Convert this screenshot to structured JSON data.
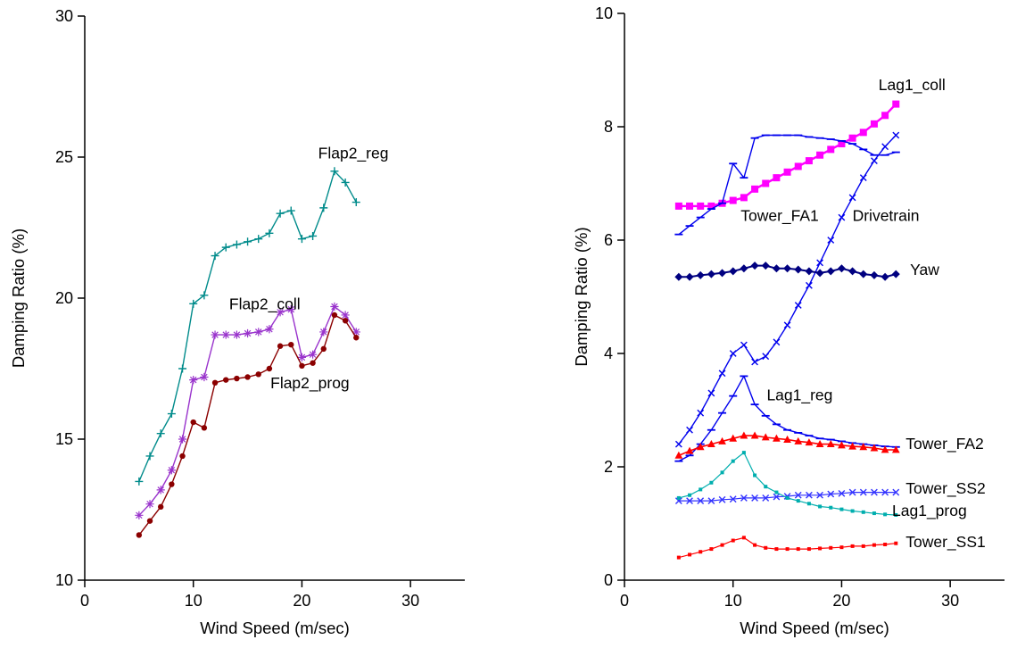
{
  "figure": {
    "background": "#ffffff",
    "description": "Two line charts of damping ratio versus wind speed"
  },
  "chart_data": [
    {
      "id": "flap-modes",
      "type": "line",
      "title": "",
      "xlabel": "Wind Speed (m/sec)",
      "ylabel": "Damping Ratio (%)",
      "xlim": [
        0,
        35
      ],
      "ylim": [
        10,
        30
      ],
      "xticks": [
        0,
        10,
        20,
        30
      ],
      "yticks": [
        10,
        15,
        20,
        25,
        30
      ],
      "grid": false,
      "legend_position": "none",
      "x": [
        5,
        6,
        7,
        8,
        9,
        10,
        11,
        12,
        13,
        14,
        15,
        16,
        17,
        18,
        19,
        20,
        21,
        22,
        23,
        24,
        25
      ],
      "series": [
        {
          "name": "Flap2_reg",
          "color": "#008B8B",
          "marker": "plus",
          "width": 1.4,
          "values": [
            13.5,
            14.4,
            15.2,
            15.9,
            17.5,
            19.8,
            20.1,
            21.5,
            21.8,
            21.9,
            22.0,
            22.1,
            22.3,
            23.0,
            23.1,
            22.1,
            22.2,
            23.2,
            24.5,
            24.1,
            23.4
          ]
        },
        {
          "name": "Flap2_coll",
          "color": "#9933CC",
          "marker": "asterisk",
          "width": 1.4,
          "values": [
            12.3,
            12.7,
            13.2,
            13.9,
            15.0,
            17.1,
            17.2,
            18.7,
            18.7,
            18.7,
            18.75,
            18.8,
            18.9,
            19.5,
            19.6,
            17.9,
            18.0,
            18.8,
            19.7,
            19.4,
            18.8
          ]
        },
        {
          "name": "Flap2_prog",
          "color": "#8B0000",
          "marker": "dot",
          "width": 1.4,
          "values": [
            11.6,
            12.1,
            12.6,
            13.4,
            14.4,
            15.6,
            15.4,
            17.0,
            17.1,
            17.15,
            17.2,
            17.3,
            17.5,
            18.3,
            18.35,
            17.6,
            17.7,
            18.2,
            19.4,
            19.2,
            18.6
          ]
        }
      ],
      "annotations": [
        {
          "text": "Flap2_reg",
          "x": 21.5,
          "y": 25.15
        },
        {
          "text": "Flap2_coll",
          "x": 13.3,
          "y": 19.8
        },
        {
          "text": "Flap2_prog",
          "x": 17.1,
          "y": 17.0
        }
      ]
    },
    {
      "id": "other-modes",
      "type": "line",
      "title": "",
      "xlabel": "Wind Speed (m/sec)",
      "ylabel": "Damping Ratio (%)",
      "xlim": [
        0,
        35
      ],
      "ylim": [
        0,
        10
      ],
      "xticks": [
        0,
        10,
        20,
        30
      ],
      "yticks": [
        0,
        2,
        4,
        6,
        8,
        10
      ],
      "grid": false,
      "legend_position": "none",
      "x": [
        5,
        6,
        7,
        8,
        9,
        10,
        11,
        12,
        13,
        14,
        15,
        16,
        17,
        18,
        19,
        20,
        21,
        22,
        23,
        24,
        25
      ],
      "series": [
        {
          "name": "Lag1_coll",
          "color": "#FF00FF",
          "marker": "square",
          "width": 2.4,
          "values": [
            6.6,
            6.6,
            6.6,
            6.6,
            6.65,
            6.7,
            6.75,
            6.9,
            7.0,
            7.1,
            7.2,
            7.3,
            7.4,
            7.5,
            7.6,
            7.7,
            7.8,
            7.9,
            8.05,
            8.2,
            8.4
          ]
        },
        {
          "name": "Tower_FA1",
          "color": "#0000EE",
          "marker": "dash",
          "width": 1.4,
          "values": [
            6.1,
            6.25,
            6.4,
            6.55,
            6.65,
            7.35,
            7.1,
            7.8,
            7.85,
            7.85,
            7.85,
            7.85,
            7.82,
            7.8,
            7.78,
            7.75,
            7.7,
            7.6,
            7.5,
            7.5,
            7.55
          ]
        },
        {
          "name": "Drivetrain",
          "color": "#0000EE",
          "marker": "x",
          "width": 1.4,
          "values": [
            2.4,
            2.65,
            2.95,
            3.3,
            3.65,
            4.0,
            4.15,
            3.85,
            3.95,
            4.2,
            4.5,
            4.85,
            5.2,
            5.6,
            6.0,
            6.4,
            6.75,
            7.1,
            7.4,
            7.65,
            7.85
          ]
        },
        {
          "name": "Yaw",
          "color": "#000080",
          "marker": "diamond",
          "width": 2.0,
          "values": [
            5.35,
            5.35,
            5.38,
            5.4,
            5.42,
            5.45,
            5.5,
            5.55,
            5.55,
            5.5,
            5.5,
            5.48,
            5.45,
            5.42,
            5.45,
            5.5,
            5.45,
            5.4,
            5.38,
            5.35,
            5.4
          ]
        },
        {
          "name": "Lag1_reg",
          "color": "#0000EE",
          "marker": "dash",
          "width": 1.4,
          "values": [
            2.1,
            2.2,
            2.4,
            2.65,
            2.95,
            3.25,
            3.6,
            3.1,
            2.9,
            2.75,
            2.65,
            2.6,
            2.55,
            2.5,
            2.48,
            2.45,
            2.42,
            2.4,
            2.38,
            2.36,
            2.35
          ]
        },
        {
          "name": "Tower_FA2",
          "color": "#FF0000",
          "marker": "triangle",
          "width": 1.6,
          "values": [
            2.2,
            2.28,
            2.35,
            2.4,
            2.45,
            2.5,
            2.55,
            2.55,
            2.52,
            2.5,
            2.48,
            2.45,
            2.43,
            2.4,
            2.4,
            2.38,
            2.36,
            2.35,
            2.33,
            2.3,
            2.3
          ]
        },
        {
          "name": "Tower_SS2",
          "color": "#3333FF",
          "marker": "x",
          "width": 1.2,
          "values": [
            1.4,
            1.4,
            1.4,
            1.4,
            1.42,
            1.43,
            1.45,
            1.45,
            1.45,
            1.47,
            1.48,
            1.5,
            1.5,
            1.5,
            1.52,
            1.53,
            1.55,
            1.55,
            1.55,
            1.55,
            1.55
          ]
        },
        {
          "name": "Lag1_prog",
          "color": "#00AEAE",
          "marker": "sq-small",
          "width": 1.2,
          "values": [
            1.45,
            1.5,
            1.6,
            1.72,
            1.9,
            2.1,
            2.25,
            1.85,
            1.65,
            1.55,
            1.45,
            1.4,
            1.35,
            1.3,
            1.28,
            1.25,
            1.22,
            1.2,
            1.18,
            1.16,
            1.15
          ]
        },
        {
          "name": "Tower_SS1",
          "color": "#FF0000",
          "marker": "sq-small",
          "width": 1.2,
          "values": [
            0.4,
            0.45,
            0.5,
            0.55,
            0.62,
            0.7,
            0.75,
            0.62,
            0.57,
            0.55,
            0.55,
            0.55,
            0.55,
            0.56,
            0.57,
            0.58,
            0.6,
            0.6,
            0.62,
            0.63,
            0.65
          ]
        }
      ],
      "annotations": [
        {
          "text": "Lag1_coll",
          "x": 23.4,
          "y": 8.74
        },
        {
          "text": "Tower_FA1",
          "x": 10.7,
          "y": 6.43
        },
        {
          "text": "Drivetrain",
          "x": 21.0,
          "y": 6.43
        },
        {
          "text": "Yaw",
          "x": 26.3,
          "y": 5.48
        },
        {
          "text": "Lag1_reg",
          "x": 13.1,
          "y": 3.27
        },
        {
          "text": "Tower_FA2",
          "x": 25.9,
          "y": 2.41
        },
        {
          "text": "Tower_SS2",
          "x": 25.9,
          "y": 1.62
        },
        {
          "text": "Lag1_prog",
          "x": 24.65,
          "y": 1.23
        },
        {
          "text": "Tower_SS1",
          "x": 25.9,
          "y": 0.68
        }
      ]
    }
  ]
}
